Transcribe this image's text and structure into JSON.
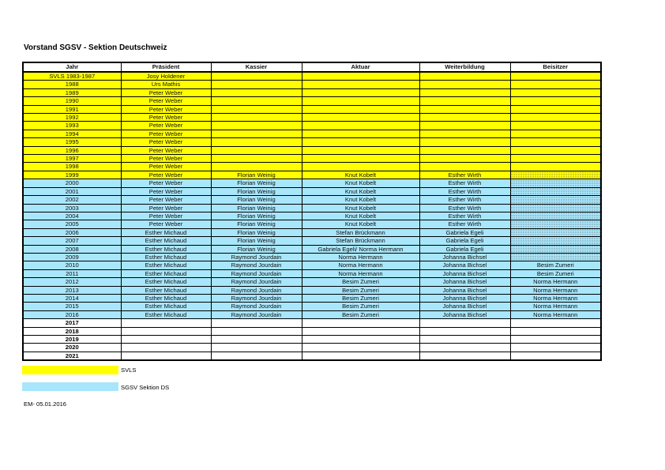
{
  "title": "Vorstand SGSV - Sektion Deutschweiz",
  "colors": {
    "svls": "#ffff00",
    "sgsv": "#a8e6fb"
  },
  "columns": [
    "Jahr",
    "Präsident",
    "Kassier",
    "Aktuar",
    "Weiterbildung",
    "Beisitzer"
  ],
  "rows": [
    {
      "group": "svls",
      "cells": [
        "SVLS 1983-1987",
        "Josy Holdener",
        "",
        "",
        "",
        ""
      ]
    },
    {
      "group": "svls",
      "cells": [
        "1988",
        "Urs Mathis",
        "",
        "",
        "",
        ""
      ]
    },
    {
      "group": "svls",
      "cells": [
        "1989",
        "Peter Weber",
        "",
        "",
        "",
        ""
      ]
    },
    {
      "group": "svls",
      "cells": [
        "1990",
        "Peter Weber",
        "",
        "",
        "",
        ""
      ]
    },
    {
      "group": "svls",
      "cells": [
        "1991",
        "Peter Weber",
        "",
        "",
        "",
        ""
      ]
    },
    {
      "group": "svls",
      "cells": [
        "1992",
        "Peter Weber",
        "",
        "",
        "",
        ""
      ]
    },
    {
      "group": "svls",
      "cells": [
        "1993",
        "Peter Weber",
        "",
        "",
        "",
        ""
      ]
    },
    {
      "group": "svls",
      "cells": [
        "1994",
        "Peter Weber",
        "",
        "",
        "",
        ""
      ]
    },
    {
      "group": "svls",
      "cells": [
        "1995",
        "Peter Weber",
        "",
        "",
        "",
        ""
      ]
    },
    {
      "group": "svls",
      "cells": [
        "1996",
        "Peter Weber",
        "",
        "",
        "",
        ""
      ]
    },
    {
      "group": "svls",
      "cells": [
        "1997",
        "Peter Weber",
        "",
        "",
        "",
        ""
      ]
    },
    {
      "group": "svls",
      "cells": [
        "1998",
        "Peter Weber",
        "",
        "",
        "",
        ""
      ]
    },
    {
      "group": "svls",
      "vacant_beisitzer": true,
      "cells": [
        "1999",
        "Peter Weber",
        "Florian Weinig",
        "Knut Kobelt",
        "Esther Wirth",
        ""
      ]
    },
    {
      "group": "sgsv",
      "vacant_beisitzer": true,
      "cells": [
        "2000",
        "Peter Weber",
        "Florian Weinig",
        "Knut Kobelt",
        "Esther Wirth",
        ""
      ]
    },
    {
      "group": "sgsv",
      "vacant_beisitzer": true,
      "cells": [
        "2001",
        "Peter Weber",
        "Florian Weinig",
        "Knut Kobelt",
        "Esther Wirth",
        ""
      ]
    },
    {
      "group": "sgsv",
      "vacant_beisitzer": true,
      "cells": [
        "2002",
        "Peter Weber",
        "Florian Weinig",
        "Knut Kobelt",
        "Esther Wirth",
        ""
      ]
    },
    {
      "group": "sgsv",
      "vacant_beisitzer": true,
      "cells": [
        "2003",
        "Peter Weber",
        "Florian Weinig",
        "Knut Kobelt",
        "Esther Wirth",
        ""
      ]
    },
    {
      "group": "sgsv",
      "vacant_beisitzer": true,
      "cells": [
        "2004",
        "Peter Weber",
        "Florian Weinig",
        "Knut Kobelt",
        "Esther Wirth",
        ""
      ]
    },
    {
      "group": "sgsv",
      "vacant_beisitzer": true,
      "cells": [
        "2005",
        "Peter Weber",
        "Florian Weinig",
        "Knut Kobelt",
        "Esther Wirth",
        ""
      ]
    },
    {
      "group": "sgsv",
      "vacant_beisitzer": true,
      "cells": [
        "2006",
        "Esther Michaud",
        "Florian Weinig",
        "Stefan Brückmann",
        "Gabriela Egeli",
        ""
      ]
    },
    {
      "group": "sgsv",
      "vacant_beisitzer": true,
      "cells": [
        "2007",
        "Esther Michaud",
        "Florian Weinig",
        "Stefan Brückmann",
        "Gabriela Egeli",
        ""
      ]
    },
    {
      "group": "sgsv",
      "vacant_beisitzer": true,
      "cells": [
        "2008",
        "Esther Michaud",
        "Florian Weinig",
        "Gabriela Egeli/ Norma Hermann",
        "Gabriela Egeli",
        ""
      ]
    },
    {
      "group": "sgsv",
      "vacant_beisitzer": true,
      "cells": [
        "2009",
        "Esther Michaud",
        "Raymond Jourdain",
        "Norma Hermann",
        "Johanna Bichsel",
        ""
      ]
    },
    {
      "group": "sgsv",
      "cells": [
        "2010",
        "Esther Michaud",
        "Raymond Jourdain",
        "Norma Hermann",
        "Johanna Bichsel",
        "Besim Zumeri"
      ]
    },
    {
      "group": "sgsv",
      "cells": [
        "2011",
        "Esther Michaud",
        "Raymond Jourdain",
        "Norma Hermann",
        "Johanna Bichsel",
        "Besim Zumeri"
      ]
    },
    {
      "group": "sgsv",
      "cells": [
        "2012",
        "Esther Michaud",
        "Raymond Jourdain",
        "Besim Zumeri",
        "Johanna Bichsel",
        "Norma Hermann"
      ]
    },
    {
      "group": "sgsv",
      "cells": [
        "2013",
        "Esther Michaud",
        "Raymond Jourdain",
        "Besim Zumeri",
        "Johanna Bichsel",
        "Norma Hermann"
      ]
    },
    {
      "group": "sgsv",
      "cells": [
        "2014",
        "Esther Michaud",
        "Raymond Jourdain",
        "Besim Zumeri",
        "Johanna Bichsel",
        "Norma Hermann"
      ]
    },
    {
      "group": "sgsv",
      "cells": [
        "2015",
        "Esther Michaud",
        "Raymond Jourdain",
        "Besim Zumeri",
        "Johanna Bichsel",
        "Norma Hermann"
      ]
    },
    {
      "group": "sgsv",
      "cells": [
        "2016",
        "Esther Michaud",
        "Raymond Jourdain",
        "Besim Zumeri",
        "Johanna Bichsel",
        "Norma Hermann"
      ]
    },
    {
      "group": "none",
      "cells": [
        "2017",
        "",
        "",
        "",
        "",
        ""
      ]
    },
    {
      "group": "none",
      "cells": [
        "2018",
        "",
        "",
        "",
        "",
        ""
      ]
    },
    {
      "group": "none",
      "cells": [
        "2019",
        "",
        "",
        "",
        "",
        ""
      ]
    },
    {
      "group": "none",
      "cells": [
        "2020",
        "",
        "",
        "",
        "",
        ""
      ]
    },
    {
      "group": "none",
      "cells": [
        "2021",
        "",
        "",
        "",
        "",
        ""
      ]
    }
  ],
  "legend": [
    {
      "label": "SVLS"
    },
    {
      "label": "SGSV Sektion DS"
    }
  ],
  "footer": "EM- 05.01.2016"
}
